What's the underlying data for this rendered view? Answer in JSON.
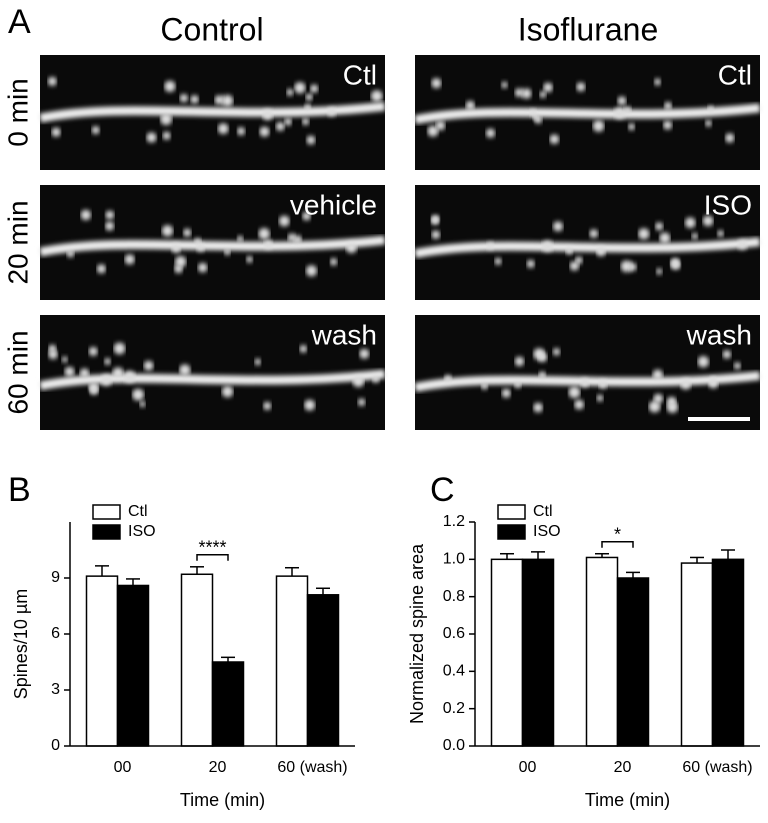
{
  "panel_a": {
    "letter": "A",
    "columns": [
      "Control",
      "Isoflurane"
    ],
    "rows": [
      "0 min",
      "20 min",
      "60 min"
    ],
    "image_labels": [
      [
        "Ctl",
        "Ctl"
      ],
      [
        "vehicle",
        "ISO"
      ],
      [
        "wash",
        "wash"
      ]
    ]
  },
  "chart_data": [
    {
      "type": "bar",
      "panel": "B",
      "xlabel": "Time (min)",
      "ylabel": "Spines/10 µm",
      "categories": [
        "00",
        "20",
        "60 (wash)"
      ],
      "series": [
        {
          "name": "Ctl",
          "color": "#ffffff",
          "values": [
            9.1,
            9.2,
            9.1
          ],
          "errors": [
            0.55,
            0.4,
            0.45
          ]
        },
        {
          "name": "ISO",
          "color": "#000000",
          "values": [
            8.6,
            4.5,
            8.1
          ],
          "errors": [
            0.35,
            0.25,
            0.35
          ]
        }
      ],
      "significance": [
        null,
        "****",
        null
      ],
      "ylim": [
        0,
        12
      ],
      "yticks": [
        0,
        3,
        6,
        9
      ],
      "legend": "upper left"
    },
    {
      "type": "bar",
      "panel": "C",
      "xlabel": "Time (min)",
      "ylabel": "Normalized spine area",
      "categories": [
        "00",
        "20",
        "60 (wash)"
      ],
      "series": [
        {
          "name": "Ctl",
          "color": "#ffffff",
          "values": [
            1.0,
            1.01,
            0.98
          ],
          "errors": [
            0.03,
            0.02,
            0.03
          ]
        },
        {
          "name": "ISO",
          "color": "#000000",
          "values": [
            1.0,
            0.9,
            1.0
          ],
          "errors": [
            0.04,
            0.03,
            0.05
          ]
        }
      ],
      "significance": [
        null,
        "*",
        null
      ],
      "ylim": [
        0,
        1.2
      ],
      "yticks": [
        {
          "value": 0,
          "label": "0.0"
        },
        {
          "value": 0.2,
          "label": "0.2"
        },
        {
          "value": 0.4,
          "label": "0.4"
        },
        {
          "value": 0.6,
          "label": "0.6"
        },
        {
          "value": 0.8,
          "label": "0.8"
        },
        {
          "value": 1,
          "label": "1.0"
        },
        {
          "value": 1.2,
          "label": "1.2"
        }
      ],
      "legend": "upper left"
    }
  ]
}
